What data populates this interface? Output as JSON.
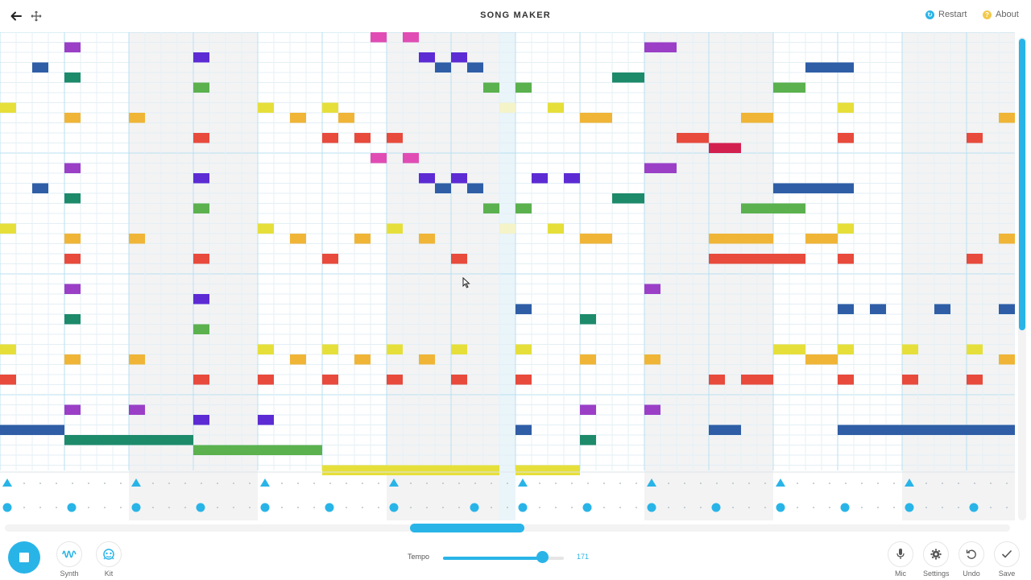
{
  "header": {
    "title": "SONG MAKER",
    "back_icon": "arrow-left-icon",
    "move_icon": "move-arrows-icon",
    "restart_label": "Restart",
    "about_label": "About",
    "restart_color": "#29b4e8",
    "about_color": "#f2c94c"
  },
  "footer": {
    "synth_label": "Synth",
    "kit_label": "Kit",
    "tempo_label": "Tempo",
    "tempo_value": "171",
    "tempo_fraction": 0.82,
    "mic_label": "Mic",
    "settings_label": "Settings",
    "undo_label": "Undo",
    "save_label": "Save"
  },
  "grid": {
    "columns": 63,
    "rows": 36,
    "playhead_column": 31,
    "scroll_thumb_fraction": 0.6,
    "palette": {
      "M": "#e14cb4",
      "P": "#9b3fc7",
      "V": "#5d2bd3",
      "B": "#2f5ea6",
      "T": "#1d8a6a",
      "G": "#5bb14e",
      "Y": "#e6df3a",
      "O": "#f0b537",
      "R": "#e84a3c",
      "C": "#d3214f",
      "L": "#f5f3c8"
    },
    "notes": [
      {
        "c": 23,
        "r": 0,
        "len": 1,
        "k": "M"
      },
      {
        "c": 25,
        "r": 0,
        "len": 1,
        "k": "M"
      },
      {
        "c": 4,
        "r": 1,
        "len": 1,
        "k": "P"
      },
      {
        "c": 40,
        "r": 1,
        "len": 2,
        "k": "P"
      },
      {
        "c": 12,
        "r": 2,
        "len": 1,
        "k": "V"
      },
      {
        "c": 26,
        "r": 2,
        "len": 1,
        "k": "V"
      },
      {
        "c": 28,
        "r": 2,
        "len": 1,
        "k": "V"
      },
      {
        "c": 2,
        "r": 3,
        "len": 1,
        "k": "B"
      },
      {
        "c": 27,
        "r": 3,
        "len": 1,
        "k": "B"
      },
      {
        "c": 29,
        "r": 3,
        "len": 1,
        "k": "B"
      },
      {
        "c": 50,
        "r": 3,
        "len": 3,
        "k": "B"
      },
      {
        "c": 4,
        "r": 4,
        "len": 1,
        "k": "T"
      },
      {
        "c": 38,
        "r": 4,
        "len": 2,
        "k": "T"
      },
      {
        "c": 12,
        "r": 5,
        "len": 1,
        "k": "G"
      },
      {
        "c": 30,
        "r": 5,
        "len": 1,
        "k": "G"
      },
      {
        "c": 32,
        "r": 5,
        "len": 1,
        "k": "G"
      },
      {
        "c": 48,
        "r": 5,
        "len": 2,
        "k": "G"
      },
      {
        "c": 0,
        "r": 7,
        "len": 1,
        "k": "Y"
      },
      {
        "c": 16,
        "r": 7,
        "len": 1,
        "k": "Y"
      },
      {
        "c": 20,
        "r": 7,
        "len": 1,
        "k": "Y"
      },
      {
        "c": 31,
        "r": 7,
        "len": 1,
        "k": "L"
      },
      {
        "c": 34,
        "r": 7,
        "len": 1,
        "k": "Y"
      },
      {
        "c": 52,
        "r": 7,
        "len": 1,
        "k": "Y"
      },
      {
        "c": 4,
        "r": 8,
        "len": 1,
        "k": "O"
      },
      {
        "c": 8,
        "r": 8,
        "len": 1,
        "k": "O"
      },
      {
        "c": 18,
        "r": 8,
        "len": 1,
        "k": "O"
      },
      {
        "c": 21,
        "r": 8,
        "len": 1,
        "k": "O"
      },
      {
        "c": 36,
        "r": 8,
        "len": 2,
        "k": "O"
      },
      {
        "c": 46,
        "r": 8,
        "len": 2,
        "k": "O"
      },
      {
        "c": 62,
        "r": 8,
        "len": 1,
        "k": "O"
      },
      {
        "c": 12,
        "r": 10,
        "len": 1,
        "k": "R"
      },
      {
        "c": 20,
        "r": 10,
        "len": 1,
        "k": "R"
      },
      {
        "c": 22,
        "r": 10,
        "len": 1,
        "k": "R"
      },
      {
        "c": 24,
        "r": 10,
        "len": 1,
        "k": "R"
      },
      {
        "c": 42,
        "r": 10,
        "len": 2,
        "k": "R"
      },
      {
        "c": 52,
        "r": 10,
        "len": 1,
        "k": "R"
      },
      {
        "c": 60,
        "r": 10,
        "len": 1,
        "k": "R"
      },
      {
        "c": 44,
        "r": 11,
        "len": 2,
        "k": "C"
      },
      {
        "c": 23,
        "r": 12,
        "len": 1,
        "k": "M"
      },
      {
        "c": 25,
        "r": 12,
        "len": 1,
        "k": "M"
      },
      {
        "c": 4,
        "r": 13,
        "len": 1,
        "k": "P"
      },
      {
        "c": 40,
        "r": 13,
        "len": 2,
        "k": "P"
      },
      {
        "c": 12,
        "r": 14,
        "len": 1,
        "k": "V"
      },
      {
        "c": 26,
        "r": 14,
        "len": 1,
        "k": "V"
      },
      {
        "c": 28,
        "r": 14,
        "len": 1,
        "k": "V"
      },
      {
        "c": 33,
        "r": 14,
        "len": 1,
        "k": "V"
      },
      {
        "c": 35,
        "r": 14,
        "len": 1,
        "k": "V"
      },
      {
        "c": 2,
        "r": 15,
        "len": 1,
        "k": "B"
      },
      {
        "c": 27,
        "r": 15,
        "len": 1,
        "k": "B"
      },
      {
        "c": 29,
        "r": 15,
        "len": 1,
        "k": "B"
      },
      {
        "c": 48,
        "r": 15,
        "len": 5,
        "k": "B"
      },
      {
        "c": 4,
        "r": 16,
        "len": 1,
        "k": "T"
      },
      {
        "c": 38,
        "r": 16,
        "len": 2,
        "k": "T"
      },
      {
        "c": 12,
        "r": 17,
        "len": 1,
        "k": "G"
      },
      {
        "c": 30,
        "r": 17,
        "len": 1,
        "k": "G"
      },
      {
        "c": 32,
        "r": 17,
        "len": 1,
        "k": "G"
      },
      {
        "c": 46,
        "r": 17,
        "len": 4,
        "k": "G"
      },
      {
        "c": 0,
        "r": 19,
        "len": 1,
        "k": "Y"
      },
      {
        "c": 16,
        "r": 19,
        "len": 1,
        "k": "Y"
      },
      {
        "c": 24,
        "r": 19,
        "len": 1,
        "k": "Y"
      },
      {
        "c": 31,
        "r": 19,
        "len": 1,
        "k": "L"
      },
      {
        "c": 34,
        "r": 19,
        "len": 1,
        "k": "Y"
      },
      {
        "c": 52,
        "r": 19,
        "len": 1,
        "k": "Y"
      },
      {
        "c": 4,
        "r": 20,
        "len": 1,
        "k": "O"
      },
      {
        "c": 8,
        "r": 20,
        "len": 1,
        "k": "O"
      },
      {
        "c": 18,
        "r": 20,
        "len": 1,
        "k": "O"
      },
      {
        "c": 22,
        "r": 20,
        "len": 1,
        "k": "O"
      },
      {
        "c": 26,
        "r": 20,
        "len": 1,
        "k": "O"
      },
      {
        "c": 36,
        "r": 20,
        "len": 2,
        "k": "O"
      },
      {
        "c": 44,
        "r": 20,
        "len": 4,
        "k": "O"
      },
      {
        "c": 50,
        "r": 20,
        "len": 2,
        "k": "O"
      },
      {
        "c": 62,
        "r": 20,
        "len": 1,
        "k": "O"
      },
      {
        "c": 4,
        "r": 22,
        "len": 1,
        "k": "R"
      },
      {
        "c": 12,
        "r": 22,
        "len": 1,
        "k": "R"
      },
      {
        "c": 20,
        "r": 22,
        "len": 1,
        "k": "R"
      },
      {
        "c": 28,
        "r": 22,
        "len": 1,
        "k": "R"
      },
      {
        "c": 44,
        "r": 22,
        "len": 6,
        "k": "R"
      },
      {
        "c": 52,
        "r": 22,
        "len": 1,
        "k": "R"
      },
      {
        "c": 60,
        "r": 22,
        "len": 1,
        "k": "R"
      },
      {
        "c": 4,
        "r": 25,
        "len": 1,
        "k": "P"
      },
      {
        "c": 40,
        "r": 25,
        "len": 1,
        "k": "P"
      },
      {
        "c": 12,
        "r": 26,
        "len": 1,
        "k": "V"
      },
      {
        "c": 32,
        "r": 27,
        "len": 1,
        "k": "B"
      },
      {
        "c": 52,
        "r": 27,
        "len": 1,
        "k": "B"
      },
      {
        "c": 54,
        "r": 27,
        "len": 1,
        "k": "B"
      },
      {
        "c": 58,
        "r": 27,
        "len": 1,
        "k": "B"
      },
      {
        "c": 62,
        "r": 27,
        "len": 1,
        "k": "B"
      },
      {
        "c": 4,
        "r": 28,
        "len": 1,
        "k": "T"
      },
      {
        "c": 36,
        "r": 28,
        "len": 1,
        "k": "T"
      },
      {
        "c": 12,
        "r": 29,
        "len": 1,
        "k": "G"
      },
      {
        "c": 0,
        "r": 31,
        "len": 1,
        "k": "Y"
      },
      {
        "c": 16,
        "r": 31,
        "len": 1,
        "k": "Y"
      },
      {
        "c": 20,
        "r": 31,
        "len": 1,
        "k": "Y"
      },
      {
        "c": 24,
        "r": 31,
        "len": 1,
        "k": "Y"
      },
      {
        "c": 28,
        "r": 31,
        "len": 1,
        "k": "Y"
      },
      {
        "c": 32,
        "r": 31,
        "len": 1,
        "k": "Y"
      },
      {
        "c": 48,
        "r": 31,
        "len": 2,
        "k": "Y"
      },
      {
        "c": 52,
        "r": 31,
        "len": 1,
        "k": "Y"
      },
      {
        "c": 56,
        "r": 31,
        "len": 1,
        "k": "Y"
      },
      {
        "c": 60,
        "r": 31,
        "len": 1,
        "k": "Y"
      },
      {
        "c": 4,
        "r": 32,
        "len": 1,
        "k": "O"
      },
      {
        "c": 8,
        "r": 32,
        "len": 1,
        "k": "O"
      },
      {
        "c": 18,
        "r": 32,
        "len": 1,
        "k": "O"
      },
      {
        "c": 22,
        "r": 32,
        "len": 1,
        "k": "O"
      },
      {
        "c": 26,
        "r": 32,
        "len": 1,
        "k": "O"
      },
      {
        "c": 36,
        "r": 32,
        "len": 1,
        "k": "O"
      },
      {
        "c": 40,
        "r": 32,
        "len": 1,
        "k": "O"
      },
      {
        "c": 50,
        "r": 32,
        "len": 2,
        "k": "O"
      },
      {
        "c": 62,
        "r": 32,
        "len": 1,
        "k": "O"
      },
      {
        "c": 0,
        "r": 34,
        "len": 1,
        "k": "R"
      },
      {
        "c": 12,
        "r": 34,
        "len": 1,
        "k": "R"
      },
      {
        "c": 16,
        "r": 34,
        "len": 1,
        "k": "R"
      },
      {
        "c": 20,
        "r": 34,
        "len": 1,
        "k": "R"
      },
      {
        "c": 24,
        "r": 34,
        "len": 1,
        "k": "R"
      },
      {
        "c": 28,
        "r": 34,
        "len": 1,
        "k": "R"
      },
      {
        "c": 32,
        "r": 34,
        "len": 1,
        "k": "R"
      },
      {
        "c": 44,
        "r": 34,
        "len": 1,
        "k": "R"
      },
      {
        "c": 46,
        "r": 34,
        "len": 2,
        "k": "R"
      },
      {
        "c": 52,
        "r": 34,
        "len": 1,
        "k": "R"
      },
      {
        "c": 56,
        "r": 34,
        "len": 1,
        "k": "R"
      },
      {
        "c": 60,
        "r": 34,
        "len": 1,
        "k": "R"
      }
    ],
    "bass_notes": [
      {
        "c": 4,
        "r": 37,
        "len": 1,
        "k": "P"
      },
      {
        "c": 8,
        "r": 37,
        "len": 1,
        "k": "P"
      },
      {
        "c": 36,
        "r": 37,
        "len": 1,
        "k": "P"
      },
      {
        "c": 40,
        "r": 37,
        "len": 1,
        "k": "P"
      },
      {
        "c": 12,
        "r": 38,
        "len": 1,
        "k": "V"
      },
      {
        "c": 16,
        "r": 38,
        "len": 1,
        "k": "V"
      },
      {
        "c": 0,
        "r": 39,
        "len": 4,
        "k": "B"
      },
      {
        "c": 32,
        "r": 39,
        "len": 1,
        "k": "B"
      },
      {
        "c": 44,
        "r": 39,
        "len": 2,
        "k": "B"
      },
      {
        "c": 52,
        "r": 39,
        "len": 11,
        "k": "B"
      },
      {
        "c": 4,
        "r": 40,
        "len": 8,
        "k": "T"
      },
      {
        "c": 36,
        "r": 40,
        "len": 1,
        "k": "T"
      },
      {
        "c": 12,
        "r": 41,
        "len": 8,
        "k": "G"
      },
      {
        "c": 20,
        "r": 43,
        "len": 11,
        "k": "Y"
      },
      {
        "c": 32,
        "r": 43,
        "len": 4,
        "k": "Y"
      }
    ],
    "percussion_triangles": [
      0,
      8,
      16,
      24,
      32,
      40,
      48,
      56
    ],
    "percussion_circles": [
      0,
      4,
      8,
      12,
      16,
      20,
      24,
      29,
      32,
      36,
      40,
      44,
      48,
      52,
      56,
      60
    ]
  }
}
